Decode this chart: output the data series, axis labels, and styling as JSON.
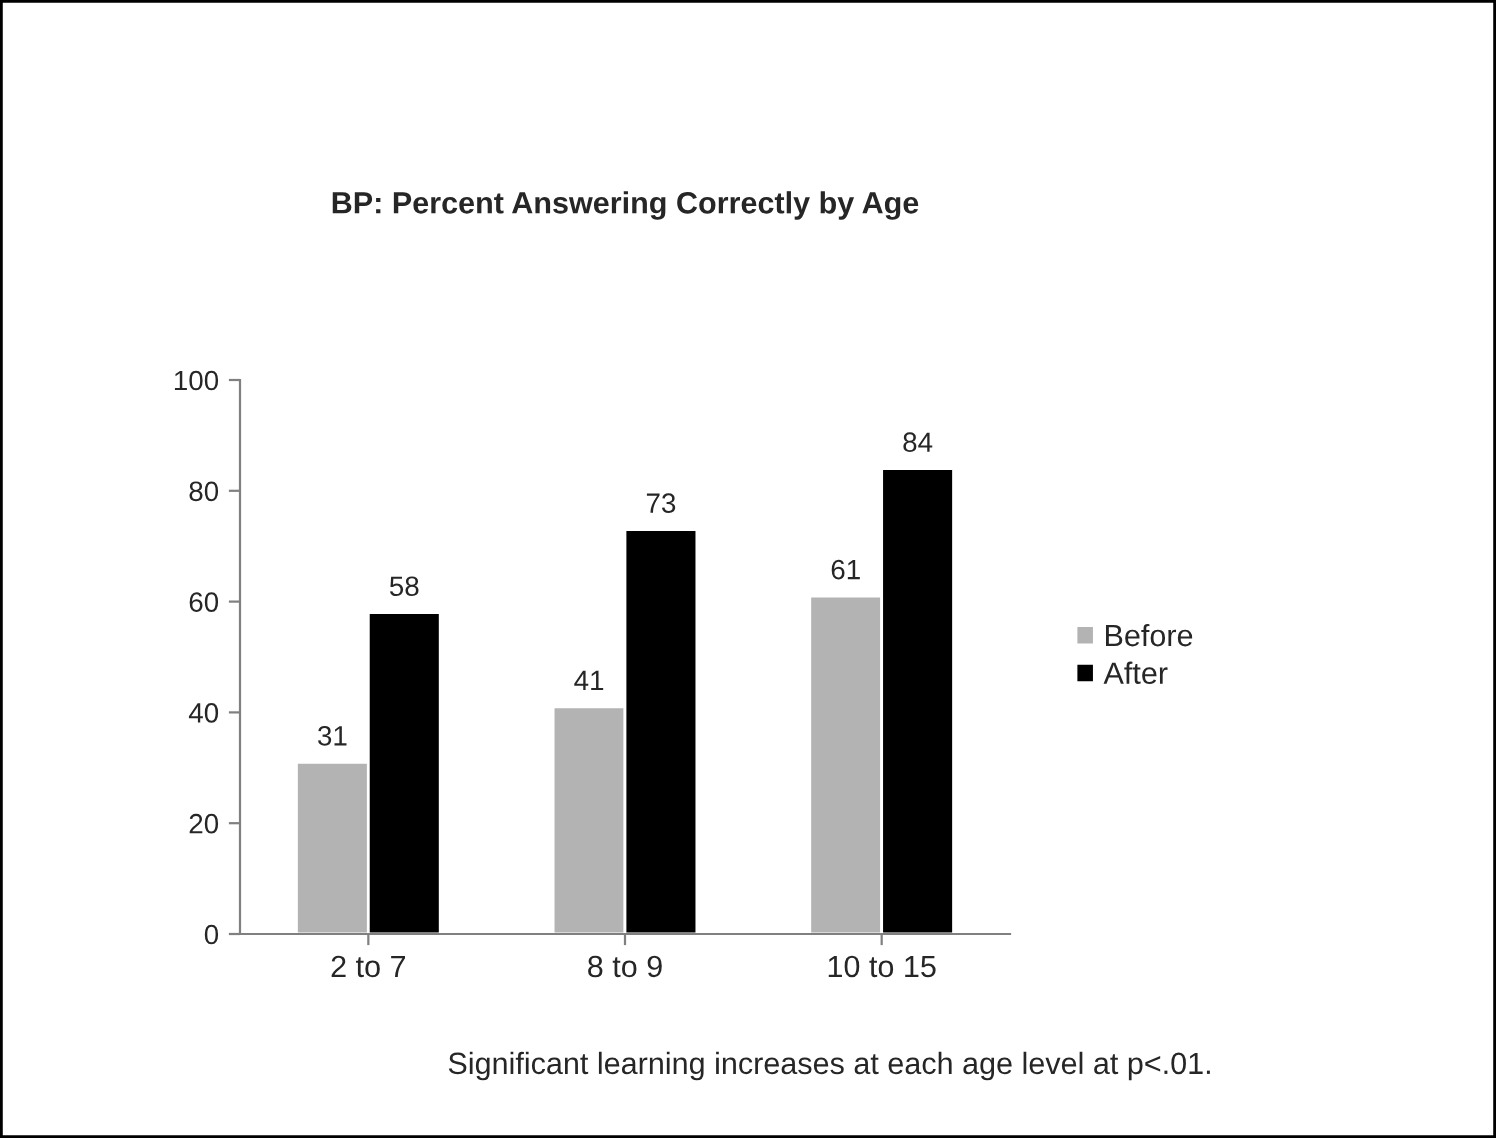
{
  "chart_data": {
    "type": "bar",
    "title": "BP: Percent Answering Correctly by Age",
    "categories": [
      "2 to 7",
      "8 to 9",
      "10 to 15"
    ],
    "series": [
      {
        "name": "Before",
        "color": "#b3b3b3",
        "values": [
          31,
          41,
          61
        ]
      },
      {
        "name": "After",
        "color": "#000000",
        "values": [
          58,
          73,
          84
        ]
      }
    ],
    "ylim": [
      0,
      100
    ],
    "yticks": [
      0,
      20,
      40,
      60,
      80,
      100
    ],
    "grid": false,
    "legend": "right",
    "data_labels": true,
    "annotations": [
      "Significant learning increases at each age level at p<.01."
    ]
  }
}
